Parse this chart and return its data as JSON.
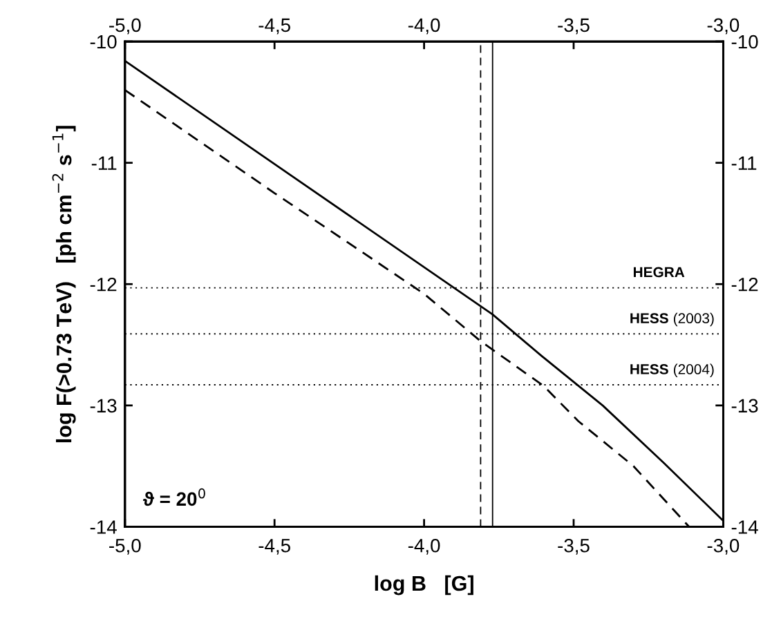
{
  "chart_data": {
    "type": "line",
    "xlabel": "log B   [G]",
    "ylabel": "log F(>0.73 TeV)   [ph cm$^{−2}$ s$^{−1}$]",
    "xlim": [
      -5,
      -3
    ],
    "ylim": [
      -14,
      -10
    ],
    "xticks": [
      {
        "value": -5,
        "label": "-5,0"
      },
      {
        "value": -4.5,
        "label": "-4,5"
      },
      {
        "value": -4,
        "label": "-4,0"
      },
      {
        "value": -3.5,
        "label": "-3,5"
      },
      {
        "value": -3,
        "label": "-3,0"
      }
    ],
    "x2lim": [
      -5,
      -3
    ],
    "x2ticks": [
      {
        "value": -5,
        "label": "-5,0"
      },
      {
        "value": -4.5,
        "label": "-4,5"
      },
      {
        "value": -4,
        "label": "-4,0"
      },
      {
        "value": -3.5,
        "label": "-3,5"
      },
      {
        "value": -3,
        "label": "-3,0"
      }
    ],
    "yticks": [
      -14,
      -13,
      -12,
      -11,
      -10
    ],
    "y2lim": [
      -14,
      -10
    ],
    "y2ticks": [
      -14,
      -13,
      -12,
      -11,
      -10
    ],
    "series": [
      {
        "color": "#000000",
        "line_style": "solid",
        "x": [
          -5,
          -3.771,
          -3.608,
          -3.403,
          -3.2,
          -3
        ],
        "values": [
          -10.16,
          -12.25,
          -12.59,
          -13.0,
          -13.47,
          -13.95
        ]
      },
      {
        "color": "#000000",
        "line_style": "dashed",
        "x": [
          -5,
          -4.5,
          -4,
          -3.811,
          -3.6,
          -3.484,
          -3.3,
          -3.114
        ],
        "values": [
          -10.4,
          -11.25,
          -12.08,
          -12.47,
          -12.84,
          -13.13,
          -13.5,
          -14.0
        ]
      }
    ],
    "ref_lines": [
      {
        "axis": "y",
        "value": -12.03,
        "label": "HEGRA",
        "line_style": "dotted",
        "color": "#000000"
      },
      {
        "axis": "y",
        "value": -12.41,
        "label": "HESS (2003)",
        "line_style": "dotted",
        "color": "#000000"
      },
      {
        "axis": "y",
        "value": -12.83,
        "label": "HESS (2004)",
        "line_style": "dotted",
        "color": "#000000"
      },
      {
        "axis": "x",
        "value": -3.811,
        "line_style": "dashed",
        "color": "#000000"
      },
      {
        "axis": "x",
        "value": -3.771,
        "line_style": "solid",
        "color": "#000000"
      }
    ],
    "annotations": [
      "ϑ = 20$^{0}$"
    ],
    "grid": false,
    "legend": false
  }
}
